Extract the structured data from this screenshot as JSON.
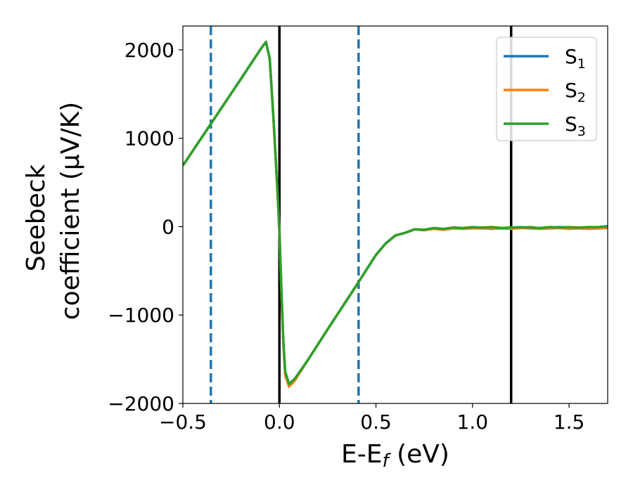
{
  "chart_data": {
    "type": "line",
    "xlabel": {
      "main": "E-E",
      "sub": "f",
      "suffix": " (eV)"
    },
    "ylabel": {
      "line1": "Seebeck",
      "line2": "coefficient  (μV/K)"
    },
    "xlim": [
      -0.5,
      1.7
    ],
    "ylim": [
      -2000,
      2270
    ],
    "xticks": [
      -0.5,
      0.0,
      0.5,
      1.0,
      1.5
    ],
    "xtick_labels": [
      "−0.5",
      "0.0",
      "0.5",
      "1.0",
      "1.5"
    ],
    "yticks": [
      -2000,
      -1000,
      0,
      1000,
      2000
    ],
    "ytick_labels": [
      "−2000",
      "−1000",
      "0",
      "1000",
      "2000"
    ],
    "grid": false,
    "legend_position": "top-right",
    "vlines": [
      {
        "x": -0.355,
        "style": "dashed",
        "color": "#1f77b4"
      },
      {
        "x": 0.0,
        "style": "solid",
        "color": "#000000"
      },
      {
        "x": 0.41,
        "style": "dashed",
        "color": "#1f77b4"
      },
      {
        "x": 1.2,
        "style": "solid",
        "color": "#000000"
      }
    ],
    "series": [
      {
        "name": "S",
        "sub": "1",
        "color": "#1f77b4",
        "x": [
          -0.5,
          -0.35,
          -0.2,
          -0.1,
          -0.07,
          -0.05,
          -0.03,
          -0.01,
          0.0,
          0.01,
          0.02,
          0.03,
          0.05,
          0.08,
          0.15,
          0.25,
          0.4,
          0.5,
          0.55,
          0.6,
          0.65,
          0.7,
          0.75,
          0.8,
          0.85,
          0.9,
          0.95,
          1.0,
          1.05,
          1.1,
          1.15,
          1.2,
          1.25,
          1.3,
          1.35,
          1.4,
          1.45,
          1.5,
          1.55,
          1.6,
          1.65,
          1.7
        ],
        "y": [
          690,
          1180,
          1670,
          2000,
          2090,
          1900,
          1200,
          400,
          -50,
          -700,
          -1300,
          -1650,
          -1790,
          -1730,
          -1500,
          -1160,
          -660,
          -320,
          -190,
          -100,
          -70,
          -30,
          -40,
          -20,
          -30,
          -10,
          -20,
          -10,
          -15,
          -10,
          -20,
          -10,
          -15,
          -5,
          -20,
          -10,
          -5,
          -10,
          -15,
          -5,
          -10,
          0
        ]
      },
      {
        "name": "S",
        "sub": "2",
        "color": "#ff7f0e",
        "x": [
          -0.5,
          -0.35,
          -0.2,
          -0.1,
          -0.07,
          -0.05,
          -0.03,
          -0.01,
          0.0,
          0.01,
          0.02,
          0.03,
          0.05,
          0.08,
          0.15,
          0.25,
          0.4,
          0.5,
          0.55,
          0.6,
          0.65,
          0.7,
          0.75,
          0.8,
          0.85,
          0.9,
          0.95,
          1.0,
          1.05,
          1.1,
          1.15,
          1.2,
          1.25,
          1.3,
          1.35,
          1.4,
          1.45,
          1.5,
          1.55,
          1.6,
          1.65,
          1.7
        ],
        "y": [
          690,
          1180,
          1670,
          2000,
          2090,
          1900,
          1200,
          400,
          -60,
          -720,
          -1320,
          -1680,
          -1810,
          -1740,
          -1500,
          -1160,
          -660,
          -320,
          -190,
          -100,
          -70,
          -30,
          -40,
          -25,
          -35,
          -20,
          -25,
          -20,
          -20,
          -25,
          -20,
          -25,
          -15,
          -20,
          -25,
          -20,
          -15,
          -25,
          -20,
          -25,
          -20,
          -15
        ]
      },
      {
        "name": "S",
        "sub": "3",
        "color": "#2ca02c",
        "x": [
          -0.5,
          -0.35,
          -0.2,
          -0.1,
          -0.07,
          -0.05,
          -0.03,
          -0.01,
          0.0,
          0.01,
          0.02,
          0.03,
          0.05,
          0.08,
          0.15,
          0.25,
          0.4,
          0.5,
          0.55,
          0.6,
          0.65,
          0.7,
          0.75,
          0.8,
          0.85,
          0.9,
          0.95,
          1.0,
          1.05,
          1.1,
          1.15,
          1.2,
          1.25,
          1.3,
          1.35,
          1.4,
          1.45,
          1.5,
          1.55,
          1.6,
          1.65,
          1.7
        ],
        "y": [
          690,
          1180,
          1670,
          2000,
          2090,
          1900,
          1200,
          400,
          -50,
          -690,
          -1290,
          -1640,
          -1780,
          -1720,
          -1500,
          -1160,
          -660,
          -320,
          -190,
          -100,
          -70,
          -30,
          -35,
          -15,
          -25,
          -10,
          -15,
          -5,
          -10,
          -5,
          -15,
          -10,
          -5,
          -10,
          -15,
          -5,
          -10,
          -5,
          -10,
          -5,
          -5,
          5
        ]
      }
    ]
  }
}
